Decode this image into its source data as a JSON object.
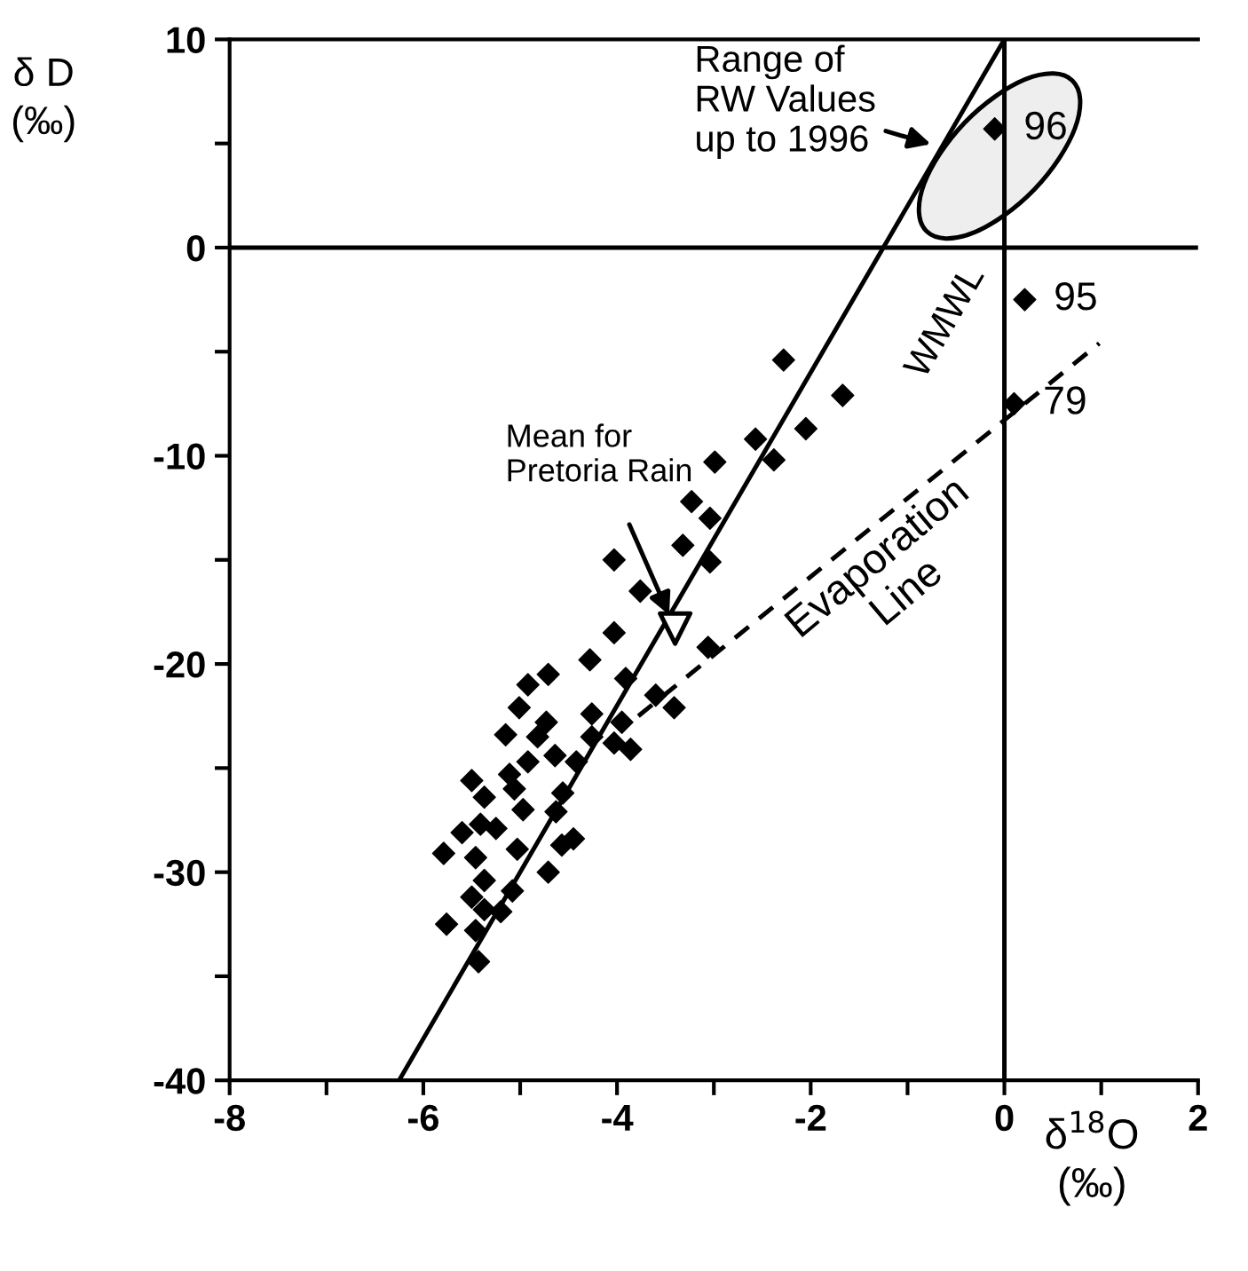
{
  "chart_data": {
    "type": "scatter",
    "xlabel": "δ$^{18}$O\n(‰)",
    "ylabel": "δ D\n(‰)",
    "xlim": [
      -8,
      2
    ],
    "ylim": [
      -40,
      10
    ],
    "xticks": [
      -8,
      {
        "value": -7,
        "label": null
      },
      -6,
      {
        "value": -5,
        "label": null
      },
      -4,
      {
        "value": -3,
        "label": null
      },
      -2,
      {
        "value": -1,
        "label": null
      },
      0,
      {
        "value": 1,
        "label": null
      },
      2
    ],
    "yticks": [
      -40,
      {
        "value": -35,
        "label": null
      },
      -30,
      {
        "value": -25,
        "label": null
      },
      -20,
      {
        "value": -15,
        "label": null
      },
      -10,
      {
        "value": -5,
        "label": null
      },
      0,
      {
        "value": 5,
        "label": null
      },
      10
    ],
    "grid": false,
    "series": [
      {
        "type": "scatter",
        "marker": "diamond",
        "color": "#000000",
        "x": [
          -4.03,
          -4.28,
          -4.71,
          -4.92,
          -3.91,
          -3.6,
          -3.41,
          -5.01,
          -4.73,
          -4.26,
          -3.95,
          -5.15,
          -4.82,
          -4.26,
          -4.03,
          -3.86,
          -4.64,
          -4.92,
          -4.42,
          -5.11,
          -5.5,
          -5.06,
          -4.56,
          -5.37,
          -4.97,
          -4.63,
          -5.41,
          -5.6,
          -5.25,
          -4.45,
          -4.57,
          -5.79,
          -5.46,
          -5.03,
          -4.71,
          -5.37,
          -5.08,
          -5.5,
          -5.37,
          -5.2,
          -5.76,
          -5.46,
          -5.43,
          -2.28,
          -1.67,
          -2.05,
          -2.57,
          -2.38,
          -2.99,
          -3.23,
          -3.04,
          -3.32,
          -3.04,
          -4.03,
          -3.76,
          -3.06,
          -0.1,
          0.21,
          0.1
        ],
        "values": [
          -18.5,
          -19.8,
          -20.5,
          -21.0,
          -20.7,
          -21.5,
          -22.1,
          -22.1,
          -22.8,
          -22.4,
          -22.8,
          -23.4,
          -23.5,
          -23.5,
          -23.8,
          -24.1,
          -24.4,
          -24.7,
          -24.7,
          -25.3,
          -25.6,
          -26.0,
          -26.2,
          -26.4,
          -27.0,
          -27.1,
          -27.7,
          -28.1,
          -27.9,
          -28.4,
          -28.7,
          -29.1,
          -29.3,
          -28.9,
          -30.0,
          -30.4,
          -30.9,
          -31.2,
          -31.8,
          -31.9,
          -32.5,
          -32.8,
          -34.3,
          -5.4,
          -7.1,
          -8.7,
          -9.2,
          -10.2,
          -10.3,
          -12.2,
          -13.0,
          -14.3,
          -15.1,
          -15.0,
          -16.5,
          -19.2,
          5.7,
          -2.5,
          -7.5
        ]
      },
      {
        "type": "scatter",
        "marker": "triangle",
        "color": "#000000",
        "x": [
          -3.4
        ],
        "values": [
          -18.3
        ]
      },
      {
        "type": "line",
        "color": "#000000",
        "line_style": "solid",
        "x": [
          -6.25,
          0
        ],
        "values": [
          -40,
          10
        ]
      },
      {
        "type": "line",
        "color": "#000000",
        "line_style": "dashed",
        "x": [
          -3.78,
          0.98
        ],
        "values": [
          -22.5,
          -4.6
        ]
      },
      {
        "type": "line",
        "color": "#000000",
        "line_style": "solid",
        "x": [
          -8,
          2
        ],
        "values": [
          0,
          0
        ]
      },
      {
        "type": "line",
        "color": "#000000",
        "line_style": "solid",
        "x": [
          0,
          0
        ],
        "values": [
          -40,
          10
        ]
      }
    ],
    "annotations": [
      {
        "text": "96",
        "x": -0.1,
        "y": 5.7
      },
      {
        "text": "95",
        "x": 0.21,
        "y": -2.5
      },
      {
        "text": "79",
        "x": 0.1,
        "y": -7.5
      },
      {
        "text": "Range of\nRW Values\nup to 1996",
        "x": -0.71,
        "y": 4.9
      },
      "Mean for\nPretoria Rain",
      "WMWL",
      "Evaporation\nLine"
    ]
  }
}
